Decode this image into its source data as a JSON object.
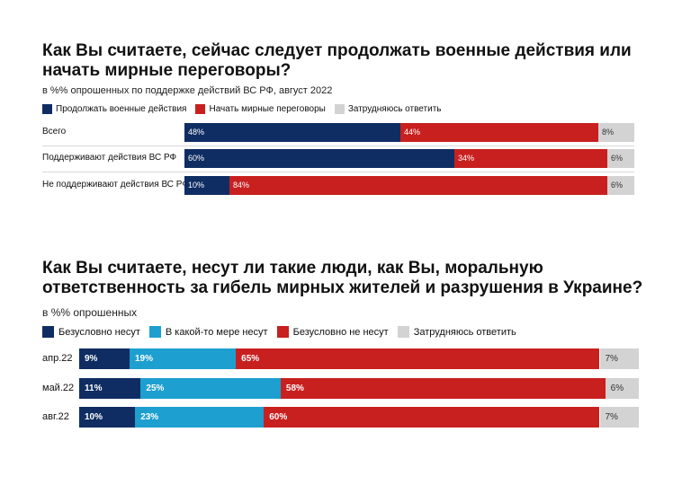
{
  "chart_data": [
    {
      "type": "bar",
      "orientation": "horizontal-stacked",
      "title": "Как Вы считаете, сейчас следует продолжать военные действия или начать мирные переговоры?",
      "subtitle": "в %% опрошенных по поддержке действий ВС РФ, август 2022",
      "categories": [
        "Всего",
        "Поддерживают действия ВС РФ",
        "Не поддерживают действия ВС РФ"
      ],
      "series": [
        {
          "name": "Продолжать военные действия",
          "color": "#0f2d63",
          "values": [
            48,
            60,
            10
          ],
          "labels": [
            "48%",
            "60%",
            "10%"
          ]
        },
        {
          "name": "Начать мирные переговоры",
          "color": "#c8201f",
          "values": [
            44,
            34,
            84
          ],
          "labels": [
            "44%",
            "34%",
            "84%"
          ]
        },
        {
          "name": "Затрудняюсь ответить",
          "color": "#d3d3d3",
          "values": [
            8,
            6,
            6
          ],
          "labels": [
            "8%",
            "6%",
            "6%"
          ]
        }
      ],
      "xlim": [
        0,
        100
      ],
      "legend_position": "top-left"
    },
    {
      "type": "bar",
      "orientation": "horizontal-stacked",
      "title": "Как Вы считаете, несут ли такие люди, как Вы, моральную ответственность за гибель мирных жителей и разрушения в Украине?",
      "subtitle": "в %% опрошенных",
      "categories": [
        "апр.22",
        "май.22",
        "авг.22"
      ],
      "series": [
        {
          "name": "Безусловно несут",
          "color": "#0f2d63",
          "values": [
            9,
            11,
            10
          ],
          "labels": [
            "9%",
            "11%",
            "10%"
          ]
        },
        {
          "name": "В какой-то мере несут",
          "color": "#1d9fd0",
          "values": [
            19,
            25,
            23
          ],
          "labels": [
            "19%",
            "25%",
            "23%"
          ]
        },
        {
          "name": "Безусловно не несут",
          "color": "#c8201f",
          "values": [
            65,
            58,
            60
          ],
          "labels": [
            "65%",
            "58%",
            "60%"
          ]
        },
        {
          "name": "Затрудняюсь ответить",
          "color": "#d3d3d3",
          "values": [
            7,
            6,
            7
          ],
          "labels": [
            "7%",
            "6%",
            "7%"
          ]
        }
      ],
      "xlim": [
        0,
        100
      ],
      "legend_position": "top-left"
    }
  ]
}
